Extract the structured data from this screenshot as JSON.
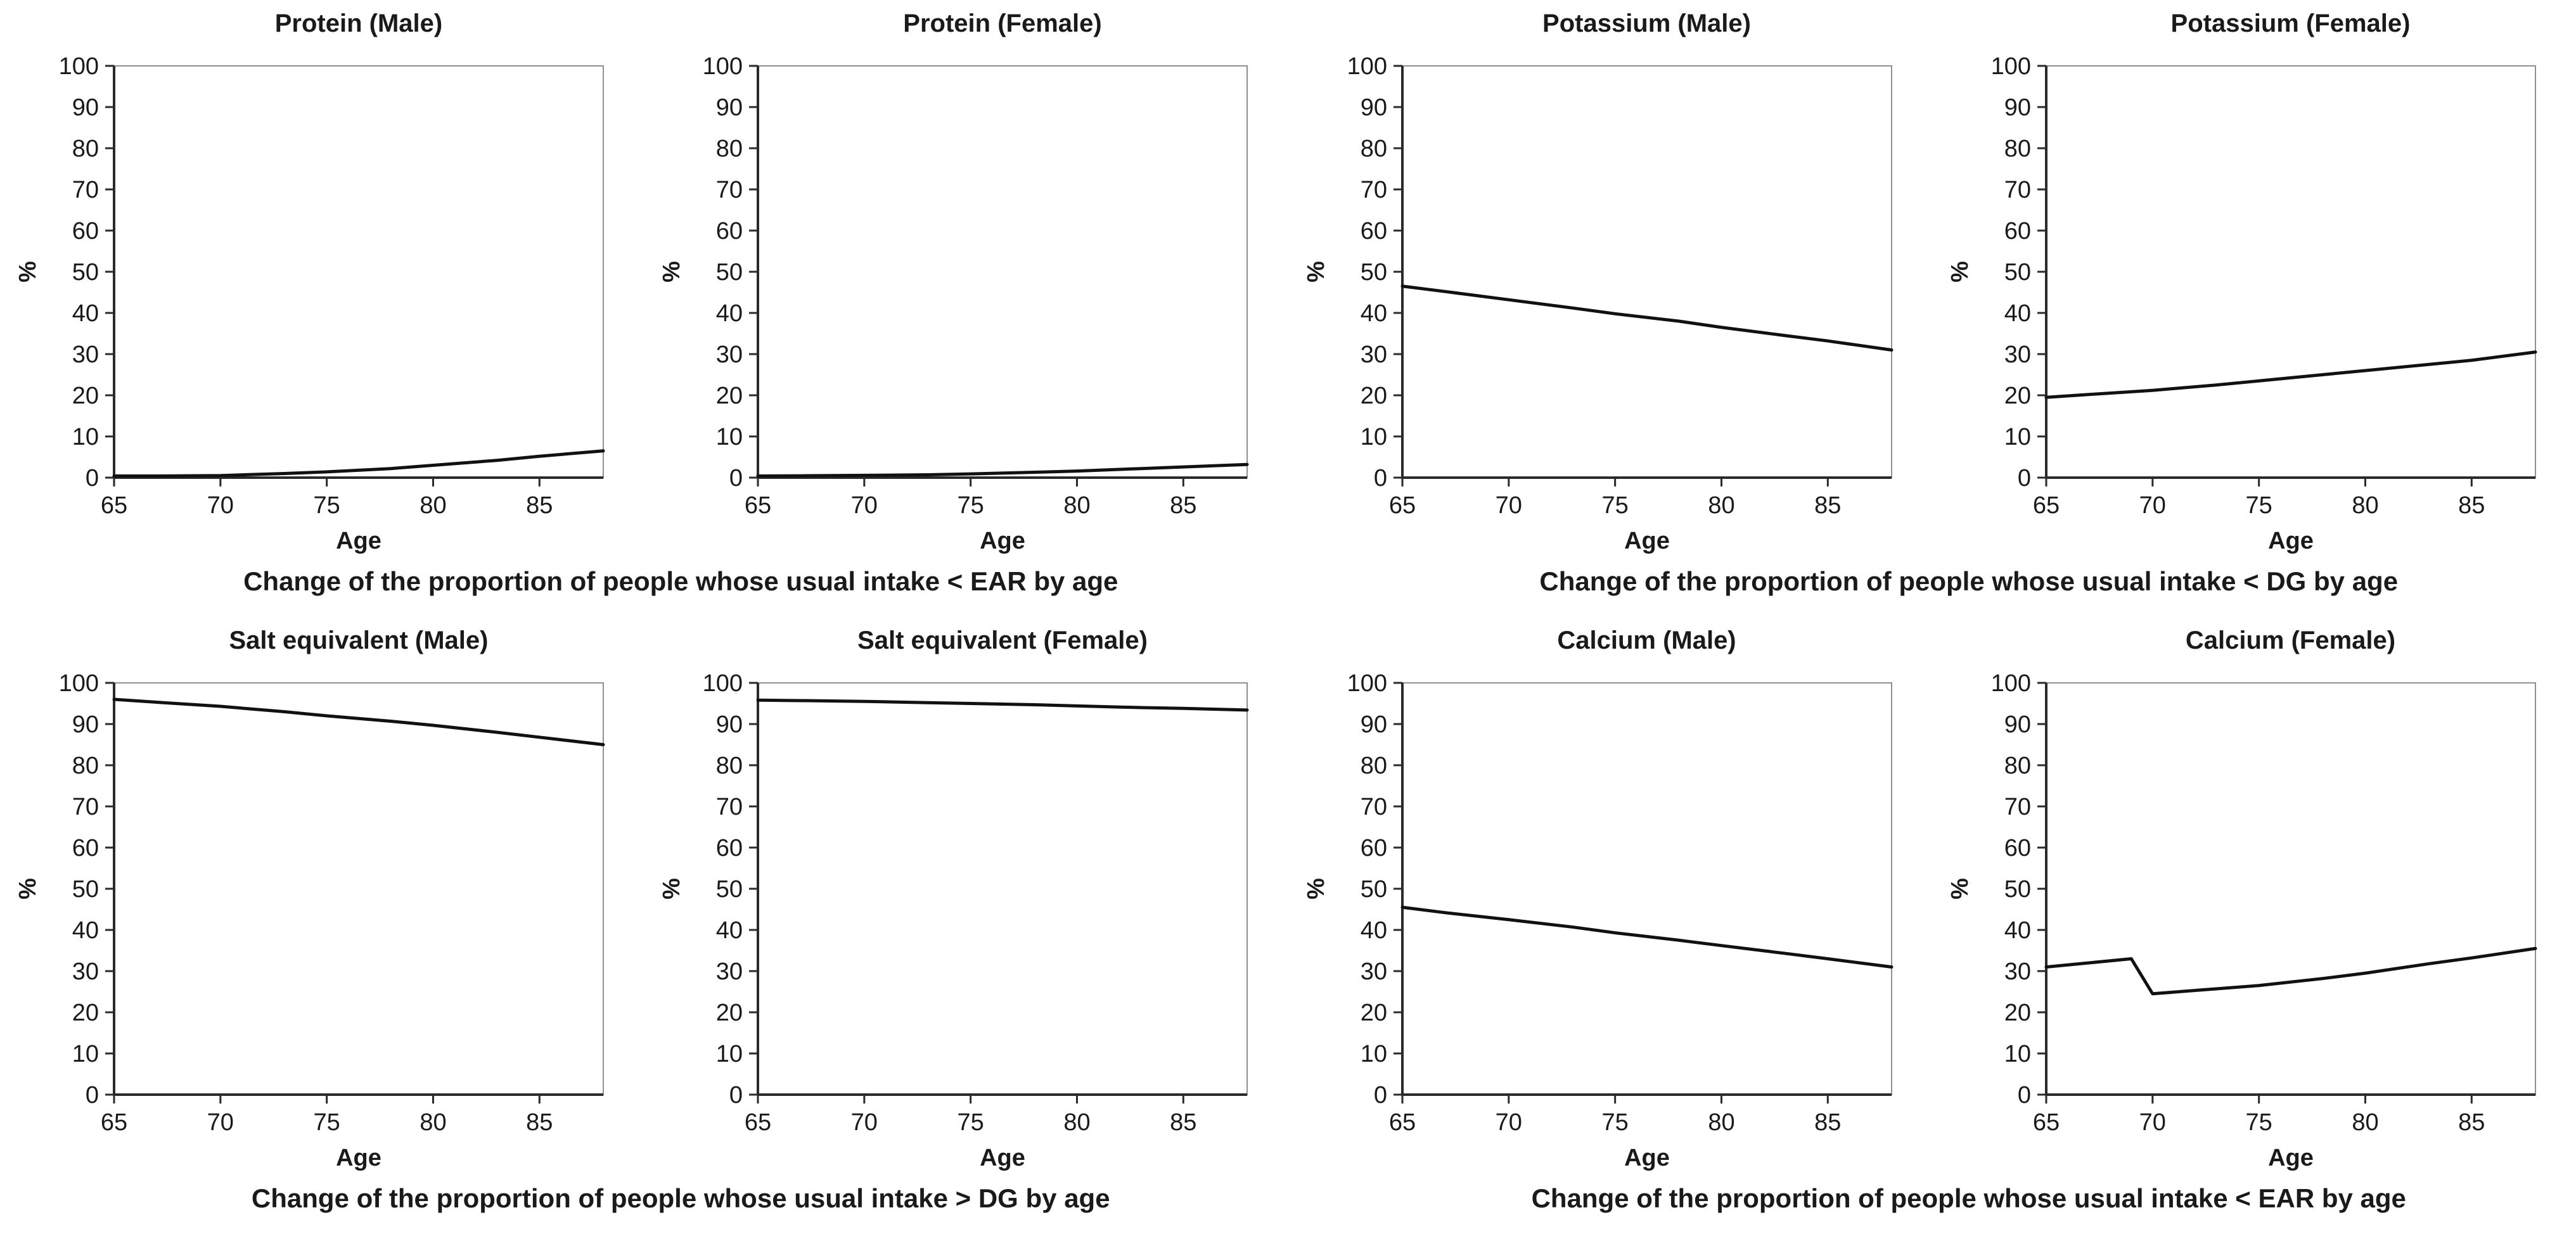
{
  "figure": {
    "background": "#ffffff",
    "line_color": "#111111",
    "axis_color": "#2a2a2a",
    "frame_color": "#909090",
    "text_color": "#1a1a1a"
  },
  "groups": [
    {
      "caption": "Change of the proportion of people whose usual intake < EAR by age"
    },
    {
      "caption": "Change of the proportion of people whose usual intake < DG by age"
    },
    {
      "caption": "Change of the proportion of people whose usual intake > DG by age"
    },
    {
      "caption": "Change of the proportion of people whose usual intake < EAR by age"
    }
  ],
  "chart_data": [
    {
      "type": "line",
      "title": "Protein (Male)",
      "xlabel": "Age",
      "ylabel": "%",
      "xlim": [
        65,
        88
      ],
      "ylim": [
        0,
        100
      ],
      "xticks": [
        65,
        70,
        75,
        80,
        85
      ],
      "yticks": [
        0,
        10,
        20,
        30,
        40,
        50,
        60,
        70,
        80,
        90,
        100
      ],
      "grid": false,
      "legend": "none",
      "x": [
        65,
        67,
        70,
        73,
        75,
        78,
        80,
        83,
        85,
        88
      ],
      "y": [
        0.4,
        0.4,
        0.5,
        1.0,
        1.4,
        2.2,
        3.0,
        4.2,
        5.2,
        6.5
      ]
    },
    {
      "type": "line",
      "title": "Protein (Female)",
      "xlabel": "Age",
      "ylabel": "%",
      "xlim": [
        65,
        88
      ],
      "ylim": [
        0,
        100
      ],
      "xticks": [
        65,
        70,
        75,
        80,
        85
      ],
      "yticks": [
        0,
        10,
        20,
        30,
        40,
        50,
        60,
        70,
        80,
        90,
        100
      ],
      "grid": false,
      "legend": "none",
      "x": [
        65,
        67,
        70,
        73,
        75,
        78,
        80,
        83,
        85,
        88
      ],
      "y": [
        0.4,
        0.45,
        0.55,
        0.7,
        0.9,
        1.3,
        1.6,
        2.2,
        2.6,
        3.2
      ]
    },
    {
      "type": "line",
      "title": "Potassium (Male)",
      "xlabel": "Age",
      "ylabel": "%",
      "xlim": [
        65,
        88
      ],
      "ylim": [
        0,
        100
      ],
      "xticks": [
        65,
        70,
        75,
        80,
        85
      ],
      "yticks": [
        0,
        10,
        20,
        30,
        40,
        50,
        60,
        70,
        80,
        90,
        100
      ],
      "grid": false,
      "legend": "none",
      "x": [
        65,
        67,
        70,
        73,
        75,
        78,
        80,
        83,
        85,
        88
      ],
      "y": [
        46.5,
        45.2,
        43.2,
        41.2,
        39.8,
        38.0,
        36.5,
        34.5,
        33.2,
        31.0
      ]
    },
    {
      "type": "line",
      "title": "Potassium (Female)",
      "xlabel": "Age",
      "ylabel": "%",
      "xlim": [
        65,
        88
      ],
      "ylim": [
        0,
        100
      ],
      "xticks": [
        65,
        70,
        75,
        80,
        85
      ],
      "yticks": [
        0,
        10,
        20,
        30,
        40,
        50,
        60,
        70,
        80,
        90,
        100
      ],
      "grid": false,
      "legend": "none",
      "x": [
        65,
        67,
        70,
        73,
        75,
        78,
        80,
        83,
        85,
        88
      ],
      "y": [
        19.5,
        20.2,
        21.2,
        22.5,
        23.5,
        25.0,
        26.0,
        27.5,
        28.5,
        30.5
      ]
    },
    {
      "type": "line",
      "title": "Salt equivalent (Male)",
      "xlabel": "Age",
      "ylabel": "%",
      "xlim": [
        65,
        88
      ],
      "ylim": [
        0,
        100
      ],
      "xticks": [
        65,
        70,
        75,
        80,
        85
      ],
      "yticks": [
        0,
        10,
        20,
        30,
        40,
        50,
        60,
        70,
        80,
        90,
        100
      ],
      "grid": false,
      "legend": "none",
      "x": [
        65,
        67,
        70,
        73,
        75,
        78,
        80,
        83,
        85,
        88
      ],
      "y": [
        96.0,
        95.3,
        94.3,
        93.0,
        92.0,
        90.7,
        89.7,
        88.0,
        86.8,
        85.0
      ]
    },
    {
      "type": "line",
      "title": "Salt equivalent (Female)",
      "xlabel": "Age",
      "ylabel": "%",
      "xlim": [
        65,
        88
      ],
      "ylim": [
        0,
        100
      ],
      "xticks": [
        65,
        70,
        75,
        80,
        85
      ],
      "yticks": [
        0,
        10,
        20,
        30,
        40,
        50,
        60,
        70,
        80,
        90,
        100
      ],
      "grid": false,
      "legend": "none",
      "x": [
        65,
        67,
        70,
        73,
        75,
        78,
        80,
        83,
        85,
        88
      ],
      "y": [
        95.8,
        95.7,
        95.5,
        95.2,
        95.0,
        94.7,
        94.4,
        94.0,
        93.8,
        93.4
      ]
    },
    {
      "type": "line",
      "title": "Calcium (Male)",
      "xlabel": "Age",
      "ylabel": "%",
      "xlim": [
        65,
        88
      ],
      "ylim": [
        0,
        100
      ],
      "xticks": [
        65,
        70,
        75,
        80,
        85
      ],
      "yticks": [
        0,
        10,
        20,
        30,
        40,
        50,
        60,
        70,
        80,
        90,
        100
      ],
      "grid": false,
      "legend": "none",
      "x": [
        65,
        67,
        70,
        73,
        75,
        78,
        80,
        83,
        85,
        88
      ],
      "y": [
        45.5,
        44.2,
        42.5,
        40.7,
        39.3,
        37.5,
        36.2,
        34.3,
        33.0,
        31.0
      ]
    },
    {
      "type": "line",
      "title": "Calcium (Female)",
      "xlabel": "Age",
      "ylabel": "%",
      "xlim": [
        65,
        88
      ],
      "ylim": [
        0,
        100
      ],
      "xticks": [
        65,
        70,
        75,
        80,
        85
      ],
      "yticks": [
        0,
        10,
        20,
        30,
        40,
        50,
        60,
        70,
        80,
        90,
        100
      ],
      "grid": false,
      "legend": "none",
      "x": [
        65,
        67,
        69,
        70,
        72,
        75,
        78,
        80,
        83,
        85,
        88
      ],
      "y": [
        31.0,
        32.0,
        33.0,
        24.5,
        25.3,
        26.5,
        28.2,
        29.5,
        31.8,
        33.2,
        35.5
      ]
    }
  ]
}
